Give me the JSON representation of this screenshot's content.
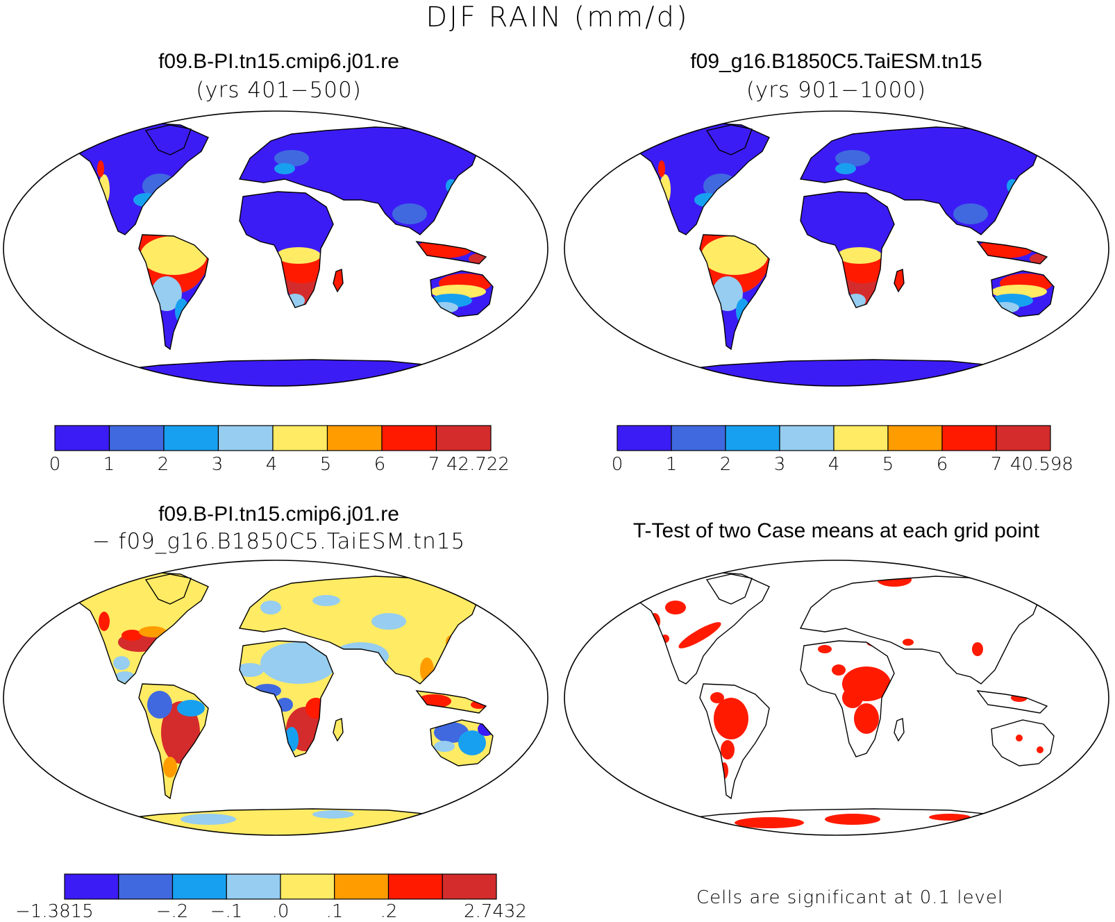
{
  "title": "DJF RAIN (mm/d)",
  "colors": {
    "levels": [
      "#3c1cf5",
      "#4069e0",
      "#18a0f0",
      "#96cdf0",
      "#ffeb64",
      "#ff9c00",
      "#ff1a00",
      "#d42c2c"
    ],
    "significant": "#ff1a00",
    "coast": "#000000",
    "ocean": "#ffffff"
  },
  "panels": {
    "top_left": {
      "title_line1": "f09.B-PI.tn15.cmip6.j01.re",
      "title_line2": "(yrs 401−500)",
      "colorbar_ticks": [
        "0",
        "1",
        "2",
        "3",
        "4",
        "5",
        "6",
        "7"
      ],
      "colorbar_max": "42.722"
    },
    "top_right": {
      "title_line1": "f09_g16.B1850C5.TaiESM.tn15",
      "title_line2": "(yrs 901−1000)",
      "colorbar_ticks": [
        "0",
        "1",
        "2",
        "3",
        "4",
        "5",
        "6",
        "7"
      ],
      "colorbar_max": "40.598"
    },
    "bottom_left": {
      "title_line1": "f09.B-PI.tn15.cmip6.j01.re",
      "title_line2": "− f09_g16.B1850C5.TaiESM.tn15",
      "colorbar_min": "−1.3815",
      "colorbar_ticks": [
        "−.2",
        "−.1",
        ".0",
        ".1",
        ".2"
      ],
      "colorbar_max": "2.7432"
    },
    "bottom_right": {
      "title_line1": "T-Test of two Case means at each grid point",
      "note": "Cells are significant at 0.1 level"
    }
  }
}
